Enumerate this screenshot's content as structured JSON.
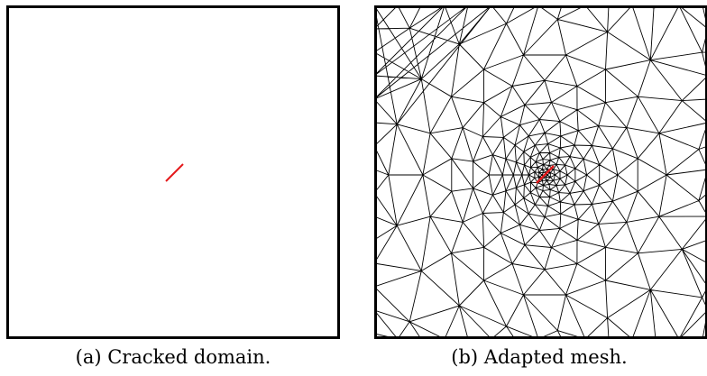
{
  "figure": {
    "panels": [
      {
        "id": "a",
        "caption": "(a) Cracked domain.",
        "content": "empty square domain with crack"
      },
      {
        "id": "b",
        "caption": "(b) Adapted mesh.",
        "content": "triangular mesh refined toward crack"
      }
    ],
    "colors": {
      "crack": "#e41a1c",
      "boundary": "#000000",
      "mesh_edge": "#000000",
      "background": "#ffffff"
    }
  }
}
